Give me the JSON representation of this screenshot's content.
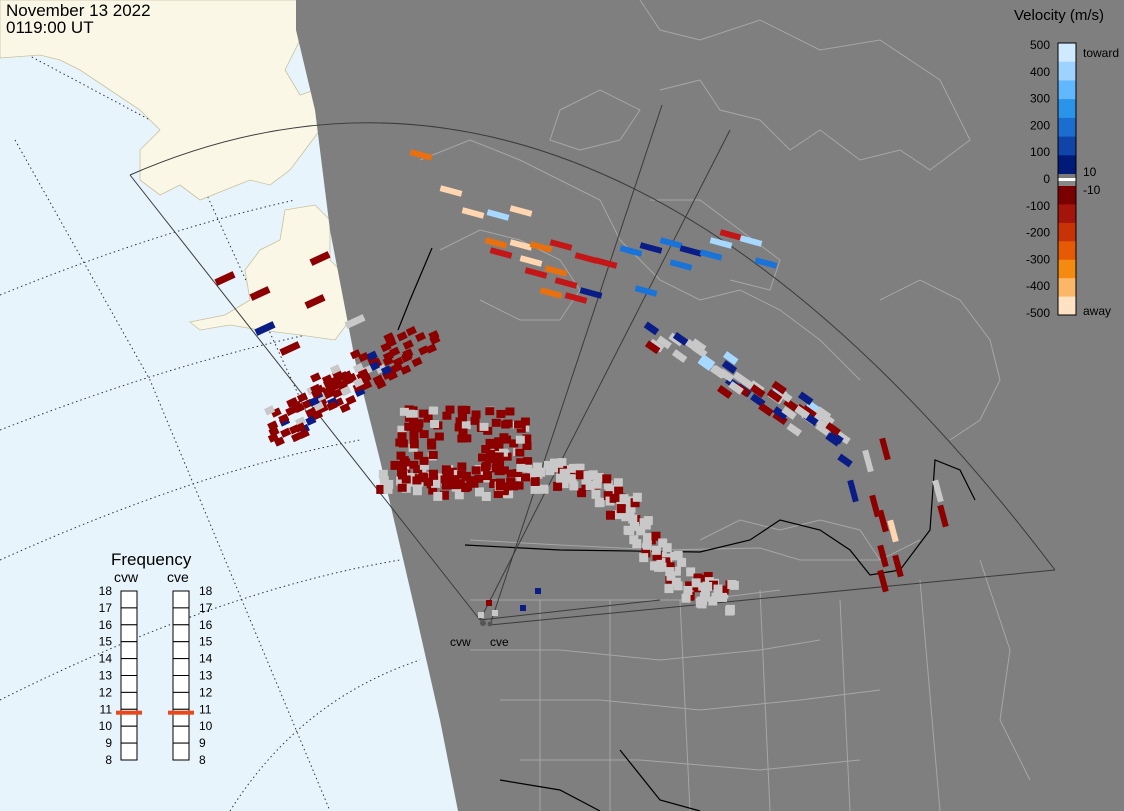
{
  "header": {
    "date": "November 13 2022",
    "time": "0119:00 UT"
  },
  "colors": {
    "ocean": "#e8f4fc",
    "land_dark": "#7f7f7f",
    "land_light": "#faf7e6",
    "border": "#a6a6a6",
    "fov_line": "#3b3b3b"
  },
  "velocity_scale": {
    "title": "Velocity (m/s)",
    "ticks": [
      "500",
      "400",
      "300",
      "200",
      "100",
      "0",
      "-100",
      "-200",
      "-300",
      "-400",
      "-500"
    ],
    "inner_labels": [
      "10",
      "-10"
    ],
    "toward_label": "toward",
    "away_label": "away",
    "colors_toward": [
      "#cfe9ff",
      "#9fd3ff",
      "#62b8ff",
      "#2a93ea",
      "#1b6ecf",
      "#1044a8",
      "#001a78"
    ],
    "colors_away": [
      "#7a0000",
      "#a3140a",
      "#c73306",
      "#e65a06",
      "#f58a10",
      "#fbb767",
      "#ffe2c4"
    ]
  },
  "frequency": {
    "title": "Frequency",
    "radars": [
      "cvw",
      "cve"
    ],
    "ticks": [
      "18",
      "17",
      "16",
      "15",
      "14",
      "13",
      "12",
      "11",
      "10",
      "9",
      "8"
    ],
    "values_mhz": [
      10.8,
      10.8
    ],
    "indicator_color": "#e8481c"
  },
  "radars": {
    "west": "cvw",
    "east": "cve"
  },
  "echo_colors": {
    "ground_scatter": "#c8c8c8",
    "dark_red": "#8c0000",
    "red": "#c41616",
    "orange": "#e8700f",
    "peach": "#ffd6b0",
    "light_blue": "#a7d8ff",
    "blue": "#1a73d9",
    "navy": "#0a1c85"
  }
}
